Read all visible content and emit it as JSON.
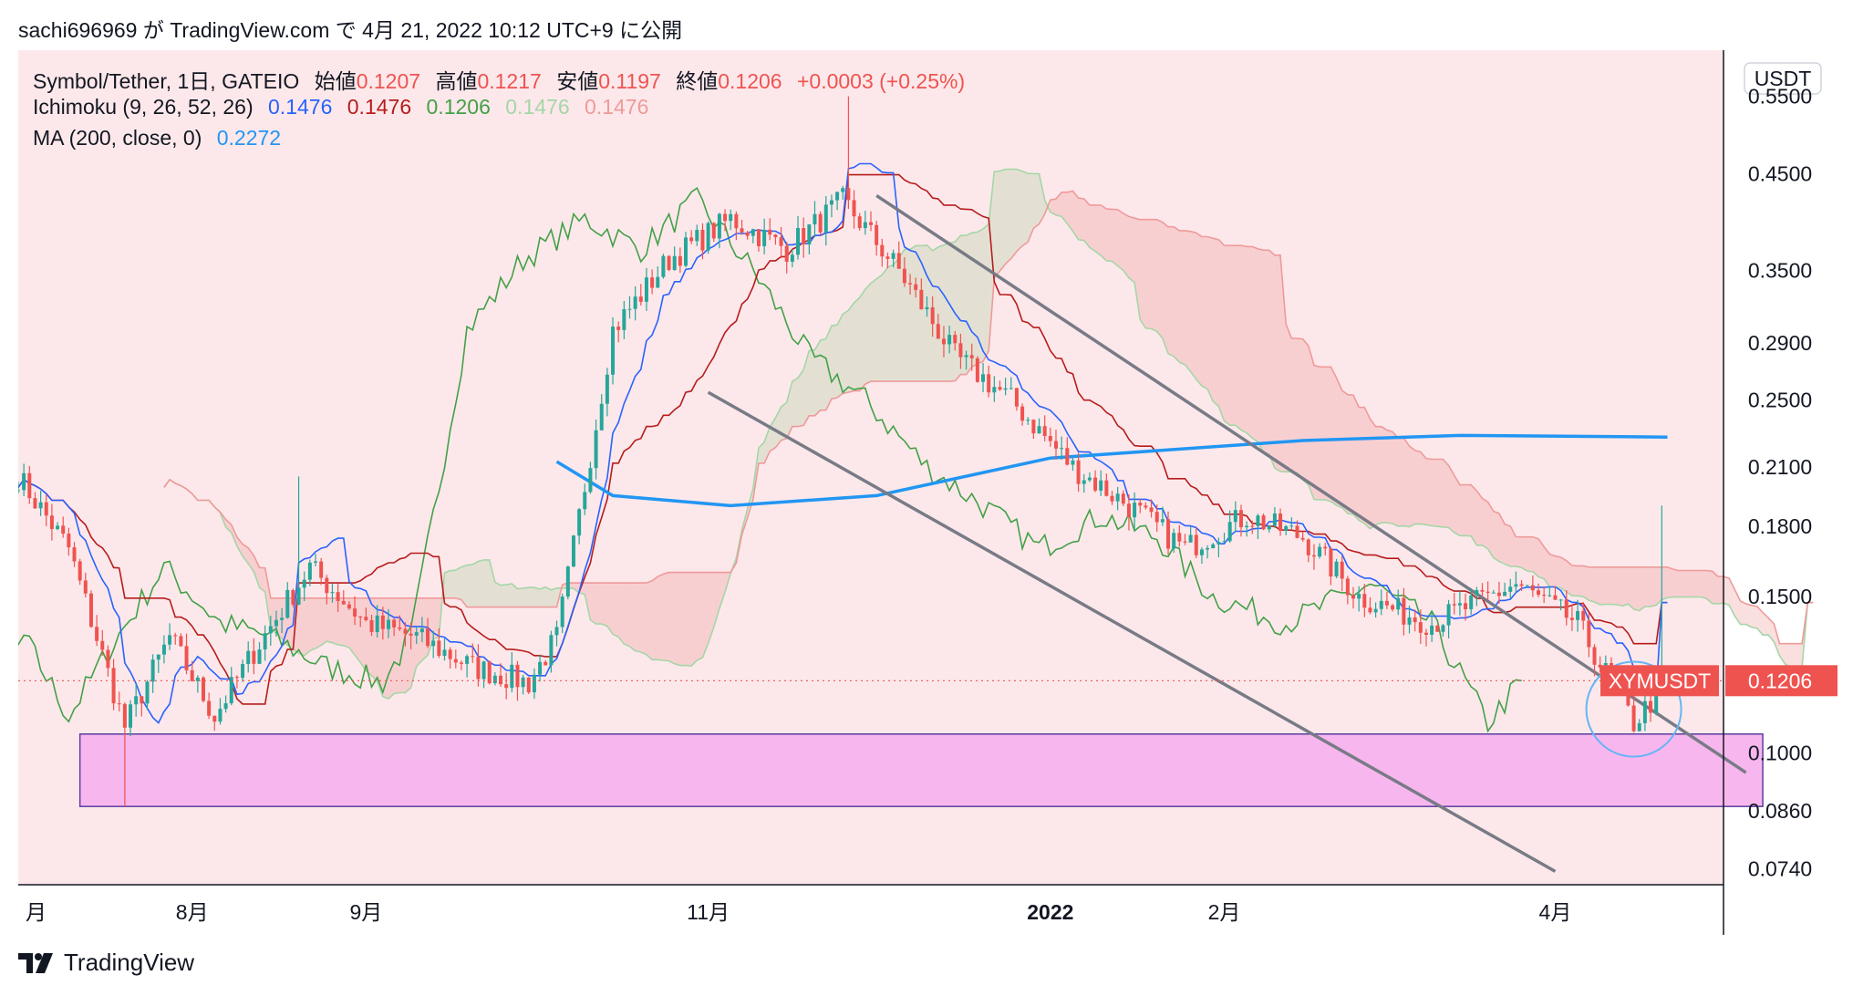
{
  "header": {
    "user": "sachi696969",
    "ga": "が",
    "site": "TradingView.com",
    "de": "で",
    "date": "4月 21, 2022 10:12 UTC+9",
    "published": "に公開"
  },
  "legend": {
    "symbol": "Symbol/Tether, 1日, GATEIO",
    "open_label": "始値",
    "open": "0.1207",
    "high_label": "高値",
    "high": "0.1217",
    "low_label": "安値",
    "low": "0.1197",
    "close_label": "終値",
    "close": "0.1206",
    "change": "+0.0003 (+0.25%)",
    "ichimoku_label": "Ichimoku (9, 26, 52, 26)",
    "ichi_v1": "0.1476",
    "ichi_v2": "0.1476",
    "ichi_v3": "0.1206",
    "ichi_v4": "0.1476",
    "ichi_v5": "0.1476",
    "ma_label": "MA (200, close, 0)",
    "ma_value": "0.2272"
  },
  "axis": {
    "currency": "USDT",
    "price_ticks": [
      "0.5500",
      "0.4500",
      "0.3500",
      "0.2900",
      "0.2500",
      "0.2100",
      "0.1800",
      "0.1500",
      "0.1000",
      "0.0860",
      "0.0740"
    ],
    "time_ticks": [
      "月",
      "8月",
      "9月",
      "11月",
      "2022",
      "2月",
      "4月"
    ],
    "symbol_tag": "XYMUSDT",
    "last_price": "0.1206"
  },
  "colors": {
    "bull": "#26a69a",
    "bear": "#ef5350",
    "tenkan": "#2962ff",
    "kijun": "#b71c1c",
    "chikou": "#43a047",
    "span_a": "#a5d6a7",
    "span_b": "#ef9a9a",
    "ma": "#2196f3",
    "support_zone": "#f8b6ee",
    "background": "#fce8ea",
    "channel": "#787b86"
  },
  "brand": {
    "name": "TradingView"
  },
  "chart_data": {
    "type": "candlestick",
    "symbol": "XYMUSDT",
    "timeframe": "1日",
    "exchange": "GATEIO",
    "y_scale": "log",
    "ylim": [
      0.071,
      0.62
    ],
    "x_range": [
      "2021-07",
      "2022-05"
    ],
    "last": 0.1206,
    "ohlc_latest": {
      "open": 0.1207,
      "high": 0.1217,
      "low": 0.1197,
      "close": 0.1206
    },
    "series": [
      {
        "name": "Ichimoku (9, 26, 52, 26)",
        "values": [
          0.1476,
          0.1476,
          0.1206,
          0.1476,
          0.1476
        ]
      },
      {
        "name": "MA (200, close, 0)",
        "values": [
          0.2272
        ]
      }
    ],
    "price_path": [
      [
        "2021-07-01",
        0.205
      ],
      [
        "2021-07-10",
        0.17
      ],
      [
        "2021-07-20",
        0.107
      ],
      [
        "2021-07-28",
        0.135
      ],
      [
        "2021-08-05",
        0.11
      ],
      [
        "2021-08-12",
        0.13
      ],
      [
        "2021-08-22",
        0.162
      ],
      [
        "2021-09-01",
        0.14
      ],
      [
        "2021-09-10",
        0.135
      ],
      [
        "2021-09-20",
        0.125
      ],
      [
        "2021-09-30",
        0.12
      ],
      [
        "2021-10-05",
        0.135
      ],
      [
        "2021-10-10",
        0.2
      ],
      [
        "2021-10-15",
        0.3
      ],
      [
        "2021-10-25",
        0.36
      ],
      [
        "2021-11-05",
        0.4
      ],
      [
        "2021-11-15",
        0.37
      ],
      [
        "2021-11-25",
        0.42
      ],
      [
        "2021-12-05",
        0.35
      ],
      [
        "2021-12-15",
        0.28
      ],
      [
        "2021-12-25",
        0.25
      ],
      [
        "2022-01-05",
        0.21
      ],
      [
        "2022-01-15",
        0.19
      ],
      [
        "2022-01-25",
        0.17
      ],
      [
        "2022-02-05",
        0.185
      ],
      [
        "2022-02-15",
        0.175
      ],
      [
        "2022-02-25",
        0.15
      ],
      [
        "2022-03-10",
        0.14
      ],
      [
        "2022-03-25",
        0.155
      ],
      [
        "2022-04-05",
        0.14
      ],
      [
        "2022-04-15",
        0.108
      ],
      [
        "2022-04-21",
        0.1206
      ]
    ],
    "support_zone": [
      0.087,
      0.105
    ],
    "grid": false
  }
}
